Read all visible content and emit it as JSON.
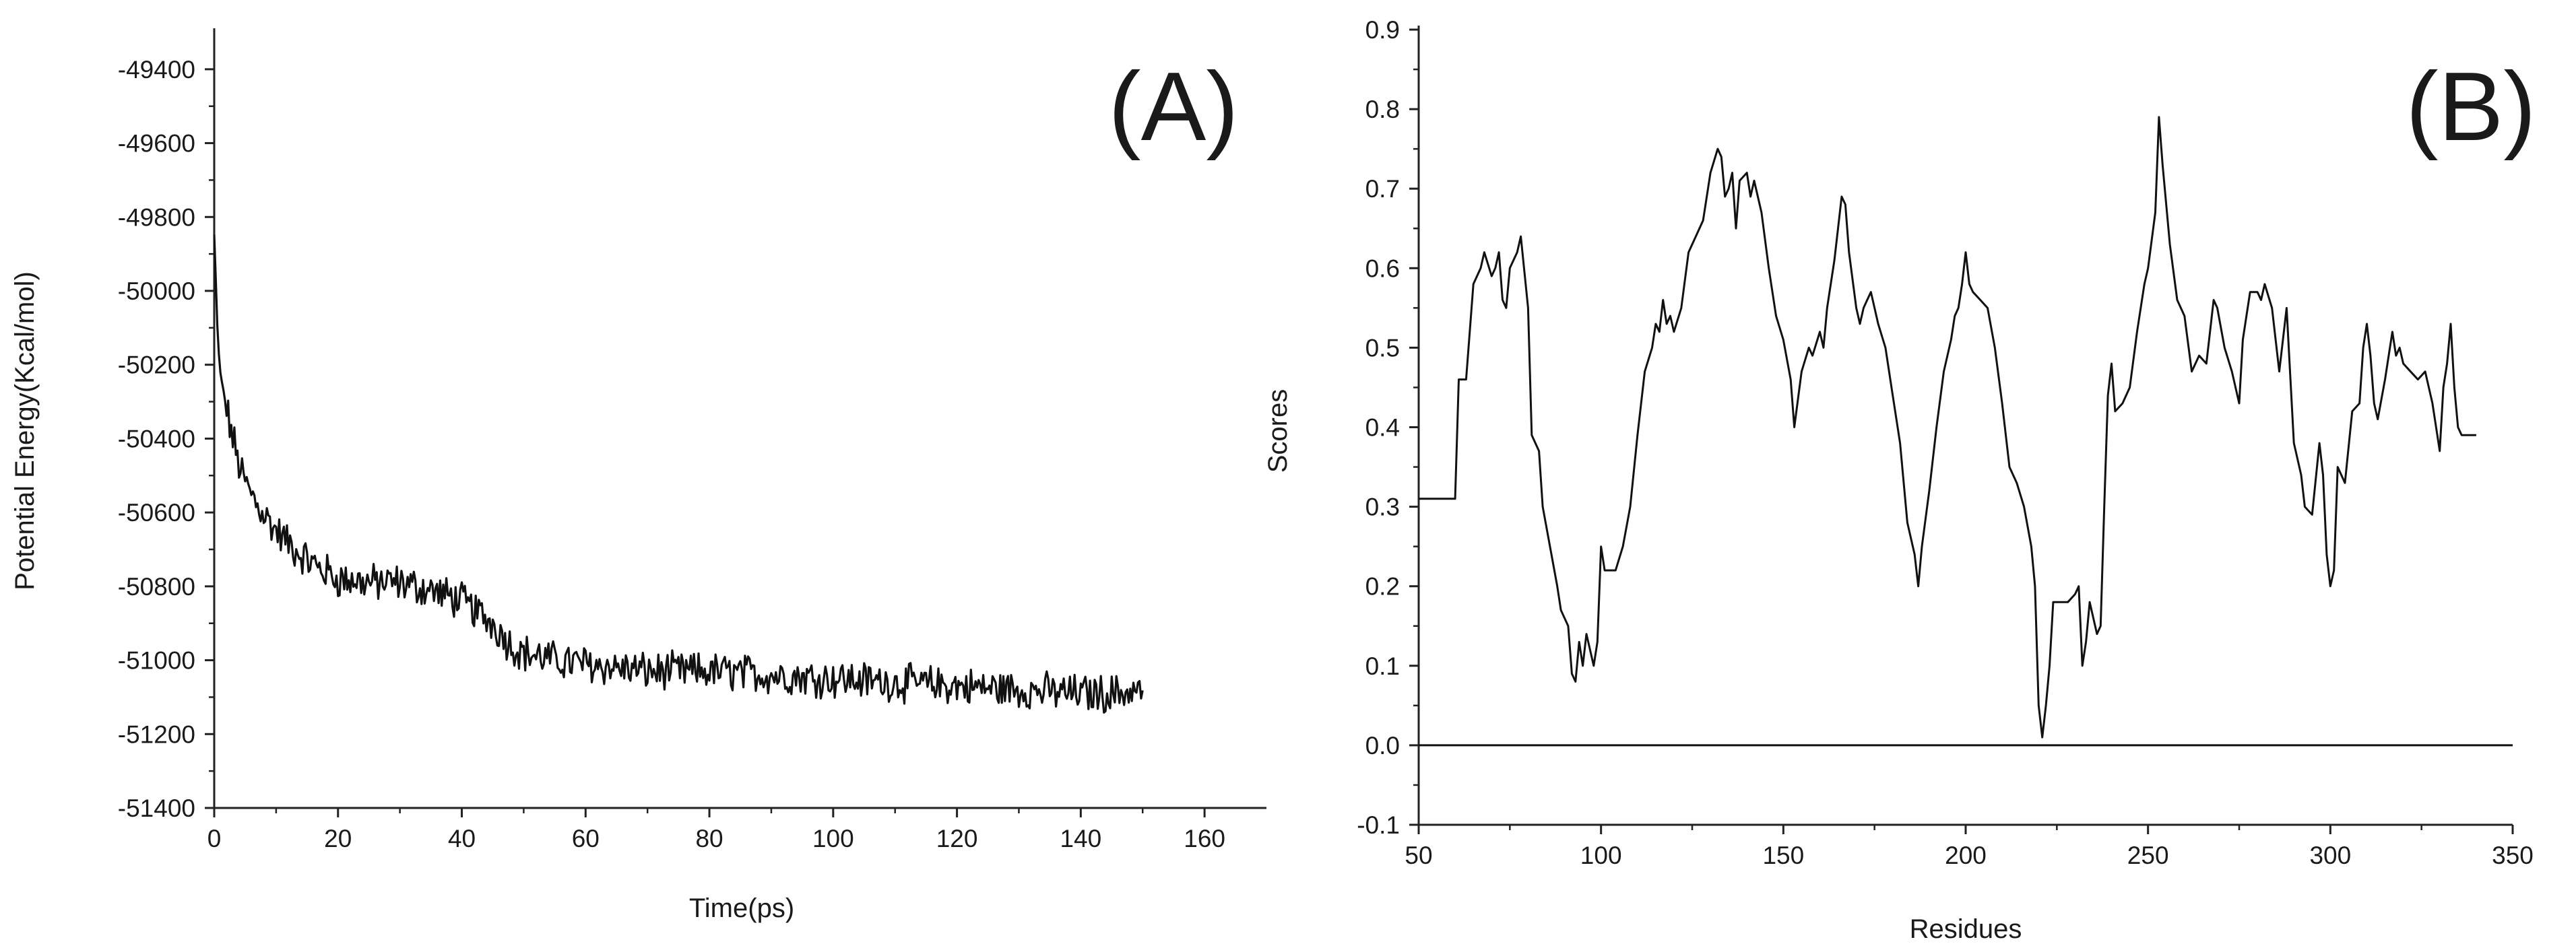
{
  "chart_data": [
    {
      "type": "line",
      "panel_label": "(A)",
      "xlabel": "Time(ps)",
      "ylabel": "Potential Energy(Kcal/mol)",
      "xlim": [
        0,
        170
      ],
      "ylim": [
        -51400,
        -49300
      ],
      "x_ticks": [
        0,
        20,
        40,
        60,
        80,
        100,
        120,
        140,
        160
      ],
      "y_ticks": [
        -51400,
        -51200,
        -51000,
        -50800,
        -50600,
        -50400,
        -50200,
        -50000,
        -49800,
        -49600,
        -49400
      ],
      "grid": false,
      "legend": "none",
      "x_range_of_data": [
        0,
        150
      ],
      "x_step": 0.25,
      "envelope": [
        [
          0,
          -49850
        ],
        [
          0.5,
          -50100
        ],
        [
          1,
          -50230
        ],
        [
          2,
          -50320
        ],
        [
          3,
          -50400
        ],
        [
          4,
          -50470
        ],
        [
          5,
          -50520
        ],
        [
          7,
          -50580
        ],
        [
          10,
          -50650
        ],
        [
          13,
          -50700
        ],
        [
          16,
          -50740
        ],
        [
          20,
          -50780
        ],
        [
          25,
          -50790
        ],
        [
          30,
          -50790
        ],
        [
          35,
          -50810
        ],
        [
          40,
          -50840
        ],
        [
          45,
          -50900
        ],
        [
          48,
          -50960
        ],
        [
          50,
          -50980
        ],
        [
          55,
          -51000
        ],
        [
          60,
          -51010
        ],
        [
          70,
          -51030
        ],
        [
          80,
          -51030
        ],
        [
          90,
          -51040
        ],
        [
          100,
          -51050
        ],
        [
          110,
          -51060
        ],
        [
          120,
          -51070
        ],
        [
          130,
          -51080
        ],
        [
          140,
          -51090
        ],
        [
          145,
          -51090
        ],
        [
          150,
          -51080
        ]
      ],
      "noise_amplitude": 45
    },
    {
      "type": "line",
      "panel_label": "(B)",
      "xlabel": "Residues",
      "ylabel": "Scores",
      "xlim": [
        50,
        350
      ],
      "ylim": [
        -0.1,
        0.9
      ],
      "x_ticks": [
        50,
        100,
        150,
        200,
        250,
        300,
        350
      ],
      "y_ticks": [
        -0.1,
        0.0,
        0.1,
        0.2,
        0.3,
        0.4,
        0.5,
        0.6,
        0.7,
        0.8,
        0.9
      ],
      "grid": false,
      "legend": "none",
      "reference_line_y": 0.0,
      "reference_line_x": [
        50,
        350
      ],
      "points": [
        [
          50,
          0.31
        ],
        [
          60,
          0.31
        ],
        [
          61,
          0.46
        ],
        [
          63,
          0.46
        ],
        [
          65,
          0.58
        ],
        [
          67,
          0.6
        ],
        [
          68,
          0.62
        ],
        [
          70,
          0.59
        ],
        [
          71,
          0.6
        ],
        [
          72,
          0.62
        ],
        [
          73,
          0.56
        ],
        [
          74,
          0.55
        ],
        [
          75,
          0.6
        ],
        [
          76,
          0.61
        ],
        [
          77,
          0.62
        ],
        [
          78,
          0.64
        ],
        [
          80,
          0.55
        ],
        [
          81,
          0.39
        ],
        [
          83,
          0.37
        ],
        [
          84,
          0.3
        ],
        [
          86,
          0.25
        ],
        [
          88,
          0.2
        ],
        [
          89,
          0.17
        ],
        [
          91,
          0.15
        ],
        [
          92,
          0.09
        ],
        [
          93,
          0.08
        ],
        [
          94,
          0.13
        ],
        [
          95,
          0.1
        ],
        [
          96,
          0.14
        ],
        [
          97,
          0.12
        ],
        [
          98,
          0.1
        ],
        [
          99,
          0.13
        ],
        [
          100,
          0.25
        ],
        [
          101,
          0.22
        ],
        [
          102,
          0.22
        ],
        [
          104,
          0.22
        ],
        [
          106,
          0.25
        ],
        [
          108,
          0.3
        ],
        [
          110,
          0.39
        ],
        [
          112,
          0.47
        ],
        [
          114,
          0.5
        ],
        [
          115,
          0.53
        ],
        [
          116,
          0.52
        ],
        [
          117,
          0.56
        ],
        [
          118,
          0.53
        ],
        [
          119,
          0.54
        ],
        [
          120,
          0.52
        ],
        [
          122,
          0.55
        ],
        [
          124,
          0.62
        ],
        [
          126,
          0.64
        ],
        [
          128,
          0.66
        ],
        [
          130,
          0.72
        ],
        [
          132,
          0.75
        ],
        [
          133,
          0.74
        ],
        [
          134,
          0.69
        ],
        [
          135,
          0.7
        ],
        [
          136,
          0.72
        ],
        [
          137,
          0.65
        ],
        [
          138,
          0.71
        ],
        [
          140,
          0.72
        ],
        [
          141,
          0.69
        ],
        [
          142,
          0.71
        ],
        [
          144,
          0.67
        ],
        [
          146,
          0.6
        ],
        [
          148,
          0.54
        ],
        [
          150,
          0.51
        ],
        [
          152,
          0.46
        ],
        [
          153,
          0.4
        ],
        [
          155,
          0.47
        ],
        [
          157,
          0.5
        ],
        [
          158,
          0.49
        ],
        [
          160,
          0.52
        ],
        [
          161,
          0.5
        ],
        [
          162,
          0.55
        ],
        [
          164,
          0.61
        ],
        [
          166,
          0.69
        ],
        [
          167,
          0.68
        ],
        [
          168,
          0.62
        ],
        [
          170,
          0.55
        ],
        [
          171,
          0.53
        ],
        [
          172,
          0.55
        ],
        [
          173,
          0.56
        ],
        [
          174,
          0.57
        ],
        [
          176,
          0.53
        ],
        [
          178,
          0.5
        ],
        [
          180,
          0.44
        ],
        [
          182,
          0.38
        ],
        [
          184,
          0.28
        ],
        [
          186,
          0.24
        ],
        [
          187,
          0.2
        ],
        [
          188,
          0.25
        ],
        [
          190,
          0.32
        ],
        [
          192,
          0.4
        ],
        [
          194,
          0.47
        ],
        [
          196,
          0.51
        ],
        [
          197,
          0.54
        ],
        [
          198,
          0.55
        ],
        [
          199,
          0.58
        ],
        [
          200,
          0.62
        ],
        [
          201,
          0.58
        ],
        [
          202,
          0.57
        ],
        [
          204,
          0.56
        ],
        [
          206,
          0.55
        ],
        [
          208,
          0.5
        ],
        [
          210,
          0.43
        ],
        [
          212,
          0.35
        ],
        [
          214,
          0.33
        ],
        [
          216,
          0.3
        ],
        [
          218,
          0.25
        ],
        [
          219,
          0.2
        ],
        [
          220,
          0.05
        ],
        [
          221,
          0.01
        ],
        [
          222,
          0.05
        ],
        [
          223,
          0.1
        ],
        [
          224,
          0.18
        ],
        [
          226,
          0.18
        ],
        [
          228,
          0.18
        ],
        [
          230,
          0.19
        ],
        [
          231,
          0.2
        ],
        [
          232,
          0.1
        ],
        [
          233,
          0.13
        ],
        [
          234,
          0.18
        ],
        [
          236,
          0.14
        ],
        [
          237,
          0.15
        ],
        [
          238,
          0.3
        ],
        [
          239,
          0.44
        ],
        [
          240,
          0.48
        ],
        [
          241,
          0.42
        ],
        [
          243,
          0.43
        ],
        [
          245,
          0.45
        ],
        [
          247,
          0.52
        ],
        [
          249,
          0.58
        ],
        [
          250,
          0.6
        ],
        [
          252,
          0.67
        ],
        [
          253,
          0.79
        ],
        [
          254,
          0.73
        ],
        [
          256,
          0.63
        ],
        [
          258,
          0.56
        ],
        [
          260,
          0.54
        ],
        [
          262,
          0.47
        ],
        [
          264,
          0.49
        ],
        [
          266,
          0.48
        ],
        [
          268,
          0.56
        ],
        [
          269,
          0.55
        ],
        [
          271,
          0.5
        ],
        [
          273,
          0.47
        ],
        [
          275,
          0.43
        ],
        [
          276,
          0.51
        ],
        [
          278,
          0.57
        ],
        [
          280,
          0.57
        ],
        [
          281,
          0.56
        ],
        [
          282,
          0.58
        ],
        [
          284,
          0.55
        ],
        [
          286,
          0.47
        ],
        [
          288,
          0.55
        ],
        [
          290,
          0.38
        ],
        [
          292,
          0.34
        ],
        [
          293,
          0.3
        ],
        [
          295,
          0.29
        ],
        [
          297,
          0.38
        ],
        [
          298,
          0.34
        ],
        [
          299,
          0.24
        ],
        [
          300,
          0.2
        ],
        [
          301,
          0.22
        ],
        [
          302,
          0.35
        ],
        [
          304,
          0.33
        ],
        [
          306,
          0.42
        ],
        [
          308,
          0.43
        ],
        [
          309,
          0.5
        ],
        [
          310,
          0.53
        ],
        [
          311,
          0.49
        ],
        [
          312,
          0.43
        ],
        [
          313,
          0.41
        ],
        [
          315,
          0.46
        ],
        [
          317,
          0.52
        ],
        [
          318,
          0.49
        ],
        [
          319,
          0.5
        ],
        [
          320,
          0.48
        ],
        [
          322,
          0.47
        ],
        [
          324,
          0.46
        ],
        [
          326,
          0.47
        ],
        [
          327,
          0.45
        ],
        [
          328,
          0.43
        ],
        [
          330,
          0.37
        ],
        [
          331,
          0.45
        ],
        [
          332,
          0.48
        ],
        [
          333,
          0.53
        ],
        [
          334,
          0.45
        ],
        [
          335,
          0.4
        ],
        [
          336,
          0.39
        ],
        [
          340,
          0.39
        ]
      ]
    }
  ]
}
